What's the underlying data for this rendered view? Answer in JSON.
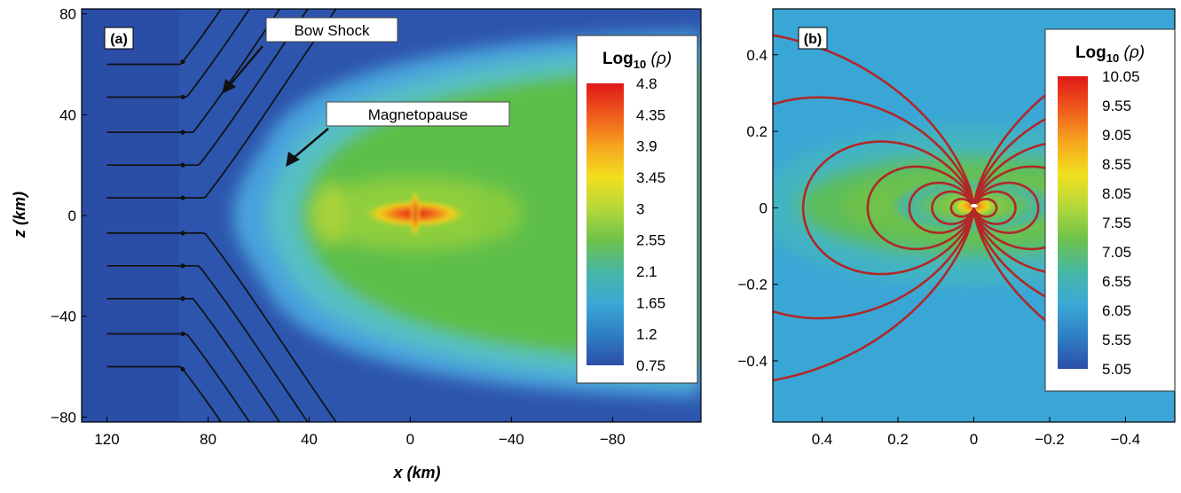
{
  "figure": {
    "axis_title_x": "x (km)",
    "axis_title_z": "z (km)"
  },
  "chart_data": [
    {
      "panel_label": "(a)",
      "type": "heatmap",
      "xlabel": "x (km)",
      "ylabel": "z (km)",
      "xlim": [
        130,
        -115
      ],
      "ylim": [
        -82,
        82
      ],
      "x_ticks": [
        "120",
        "80",
        "40",
        "0",
        "−40",
        "−80"
      ],
      "x_tick_values": [
        120,
        80,
        40,
        0,
        -40,
        -80
      ],
      "y_ticks": [
        "80",
        "40",
        "0",
        "−40",
        "−80"
      ],
      "y_tick_values": [
        80,
        40,
        0,
        -40,
        -80
      ],
      "colorbar": {
        "title_main": "Log",
        "title_sub": "10",
        "title_var": " (ρ)",
        "labels": [
          "4.8",
          "4.35",
          "3.9",
          "3.45",
          "3",
          "2.55",
          "2.1",
          "1.65",
          "1.2",
          "0.75"
        ],
        "values": [
          4.8,
          4.35,
          3.9,
          3.45,
          3,
          2.55,
          2.1,
          1.65,
          1.2,
          0.75
        ]
      },
      "annotations": [
        {
          "text": "Bow Shock",
          "points_to": [
            78,
            48
          ]
        },
        {
          "text": "Magnetopause",
          "points_to": [
            55,
            20
          ]
        }
      ],
      "streamlines": "solar-wind flow lines deflecting around the magnetosphere, with direction arrows",
      "colors": {
        "low": "#2a4ea8",
        "mid": "#5cbf4a",
        "high": "#e02020"
      }
    },
    {
      "panel_label": "(b)",
      "type": "heatmap",
      "xlabel": "x (km)",
      "ylabel": "z (km)",
      "xlim": [
        0.53,
        -0.53
      ],
      "ylim": [
        -0.56,
        0.52
      ],
      "x_ticks": [
        "0.4",
        "0.2",
        "0",
        "−0.2",
        "−0.4"
      ],
      "x_tick_values": [
        0.4,
        0.2,
        0,
        -0.2,
        -0.4
      ],
      "y_ticks": [
        "0.4",
        "0.2",
        "0",
        "−0.2",
        "−0.4"
      ],
      "y_tick_values": [
        0.4,
        0.2,
        0,
        -0.2,
        -0.4
      ],
      "colorbar": {
        "title_main": "Log",
        "title_sub": "10",
        "title_var": " (ρ)",
        "labels": [
          "10.05",
          "9.55",
          "9.05",
          "8.55",
          "8.05",
          "7.55",
          "7.05",
          "6.55",
          "6.05",
          "5.55",
          "5.05"
        ],
        "values": [
          10.05,
          9.55,
          9.05,
          8.55,
          8.05,
          7.55,
          7.05,
          6.55,
          6.05,
          5.55,
          5.05
        ]
      },
      "field_lines": "dipole magnetic field lines (red)",
      "field_line_Lshells": [
        0.06,
        0.11,
        0.17,
        0.28,
        0.45,
        0.75,
        1.2
      ],
      "colors": {
        "field_line": "#b02828",
        "low": "#2a4ea8",
        "high": "#e02020"
      }
    }
  ]
}
